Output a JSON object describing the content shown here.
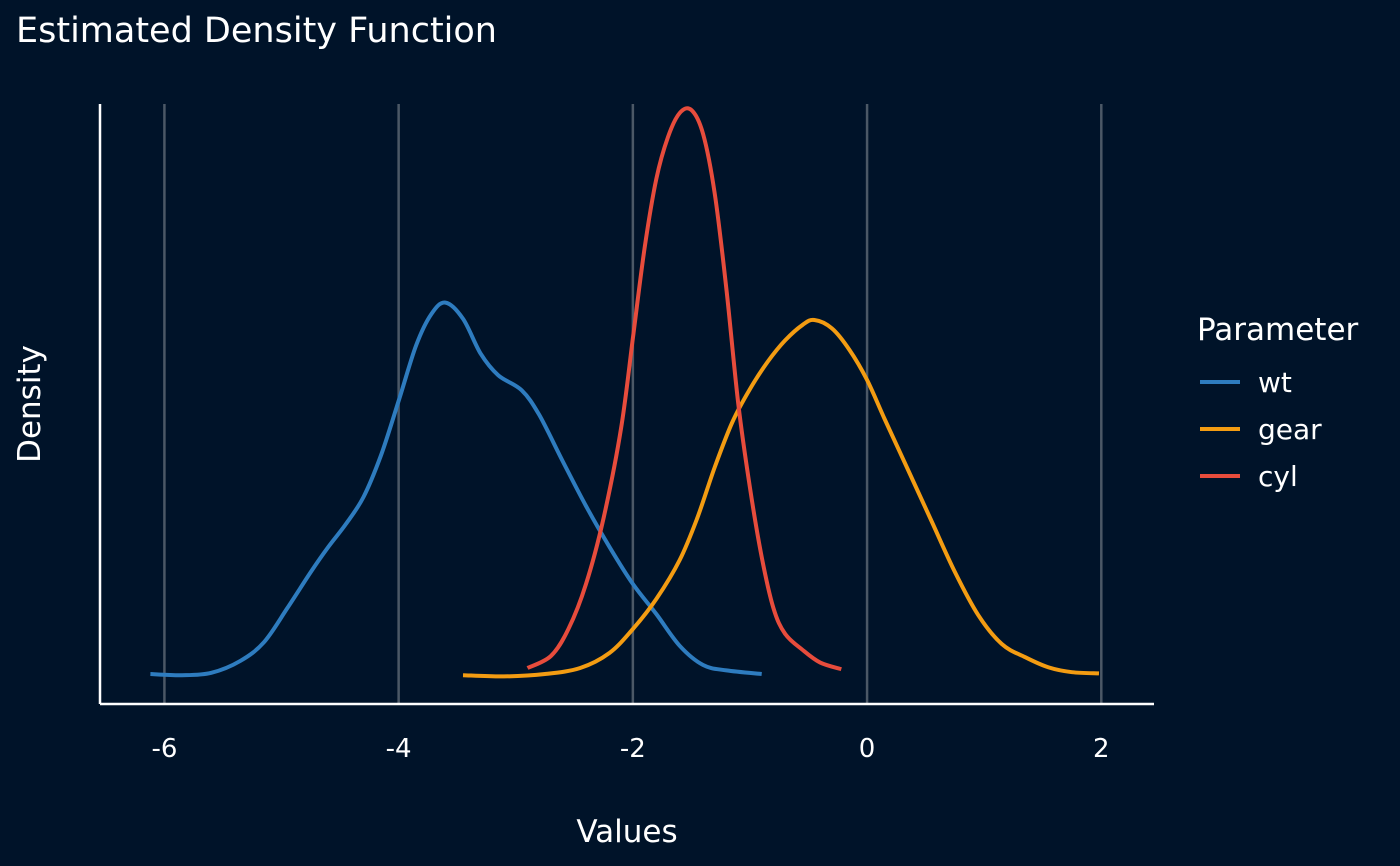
{
  "chart_data": {
    "type": "line",
    "title": "Estimated Density Function",
    "xlabel": "Values",
    "ylabel": "Density",
    "xlim": [
      -6.55,
      2.45
    ],
    "ylim": [
      0,
      1.0
    ],
    "x_ticks": [
      -6,
      -4,
      -2,
      0,
      2
    ],
    "grid": "vertical major lines",
    "legend": {
      "title": "Parameter",
      "position": "right"
    },
    "series": [
      {
        "name": "wt",
        "color": "#2e7cbf",
        "points": [
          [
            -6.12,
            0.05
          ],
          [
            -5.85,
            0.048
          ],
          [
            -5.6,
            0.052
          ],
          [
            -5.35,
            0.072
          ],
          [
            -5.15,
            0.103
          ],
          [
            -4.95,
            0.16
          ],
          [
            -4.75,
            0.22
          ],
          [
            -4.6,
            0.262
          ],
          [
            -4.45,
            0.3
          ],
          [
            -4.3,
            0.345
          ],
          [
            -4.15,
            0.415
          ],
          [
            -4.0,
            0.505
          ],
          [
            -3.85,
            0.598
          ],
          [
            -3.72,
            0.65
          ],
          [
            -3.6,
            0.669
          ],
          [
            -3.45,
            0.642
          ],
          [
            -3.3,
            0.584
          ],
          [
            -3.15,
            0.548
          ],
          [
            -2.95,
            0.523
          ],
          [
            -2.8,
            0.482
          ],
          [
            -2.6,
            0.405
          ],
          [
            -2.4,
            0.33
          ],
          [
            -2.2,
            0.262
          ],
          [
            -2.0,
            0.2
          ],
          [
            -1.8,
            0.15
          ],
          [
            -1.6,
            0.097
          ],
          [
            -1.4,
            0.065
          ],
          [
            -1.2,
            0.056
          ],
          [
            -0.9,
            0.05
          ]
        ]
      },
      {
        "name": "gear",
        "color": "#f39c12",
        "points": [
          [
            -3.45,
            0.048
          ],
          [
            -3.1,
            0.046
          ],
          [
            -2.75,
            0.05
          ],
          [
            -2.45,
            0.06
          ],
          [
            -2.2,
            0.085
          ],
          [
            -2.0,
            0.125
          ],
          [
            -1.8,
            0.175
          ],
          [
            -1.6,
            0.24
          ],
          [
            -1.45,
            0.31
          ],
          [
            -1.3,
            0.395
          ],
          [
            -1.15,
            0.47
          ],
          [
            -1.0,
            0.525
          ],
          [
            -0.85,
            0.57
          ],
          [
            -0.7,
            0.606
          ],
          [
            -0.55,
            0.632
          ],
          [
            -0.45,
            0.64
          ],
          [
            -0.3,
            0.626
          ],
          [
            -0.15,
            0.59
          ],
          [
            0.0,
            0.54
          ],
          [
            0.15,
            0.475
          ],
          [
            0.35,
            0.39
          ],
          [
            0.55,
            0.305
          ],
          [
            0.75,
            0.22
          ],
          [
            0.95,
            0.148
          ],
          [
            1.15,
            0.1
          ],
          [
            1.35,
            0.078
          ],
          [
            1.55,
            0.061
          ],
          [
            1.75,
            0.053
          ],
          [
            1.98,
            0.051
          ]
        ]
      },
      {
        "name": "cyl",
        "color": "#e74c3c",
        "points": [
          [
            -2.9,
            0.06
          ],
          [
            -2.7,
            0.08
          ],
          [
            -2.55,
            0.125
          ],
          [
            -2.4,
            0.2
          ],
          [
            -2.25,
            0.31
          ],
          [
            -2.1,
            0.46
          ],
          [
            -2.0,
            0.61
          ],
          [
            -1.9,
            0.76
          ],
          [
            -1.8,
            0.875
          ],
          [
            -1.7,
            0.945
          ],
          [
            -1.6,
            0.985
          ],
          [
            -1.5,
            0.99
          ],
          [
            -1.4,
            0.95
          ],
          [
            -1.3,
            0.85
          ],
          [
            -1.2,
            0.69
          ],
          [
            -1.1,
            0.5
          ],
          [
            -1.0,
            0.36
          ],
          [
            -0.9,
            0.245
          ],
          [
            -0.8,
            0.16
          ],
          [
            -0.7,
            0.117
          ],
          [
            -0.55,
            0.09
          ],
          [
            -0.4,
            0.069
          ],
          [
            -0.22,
            0.058
          ]
        ]
      }
    ]
  }
}
